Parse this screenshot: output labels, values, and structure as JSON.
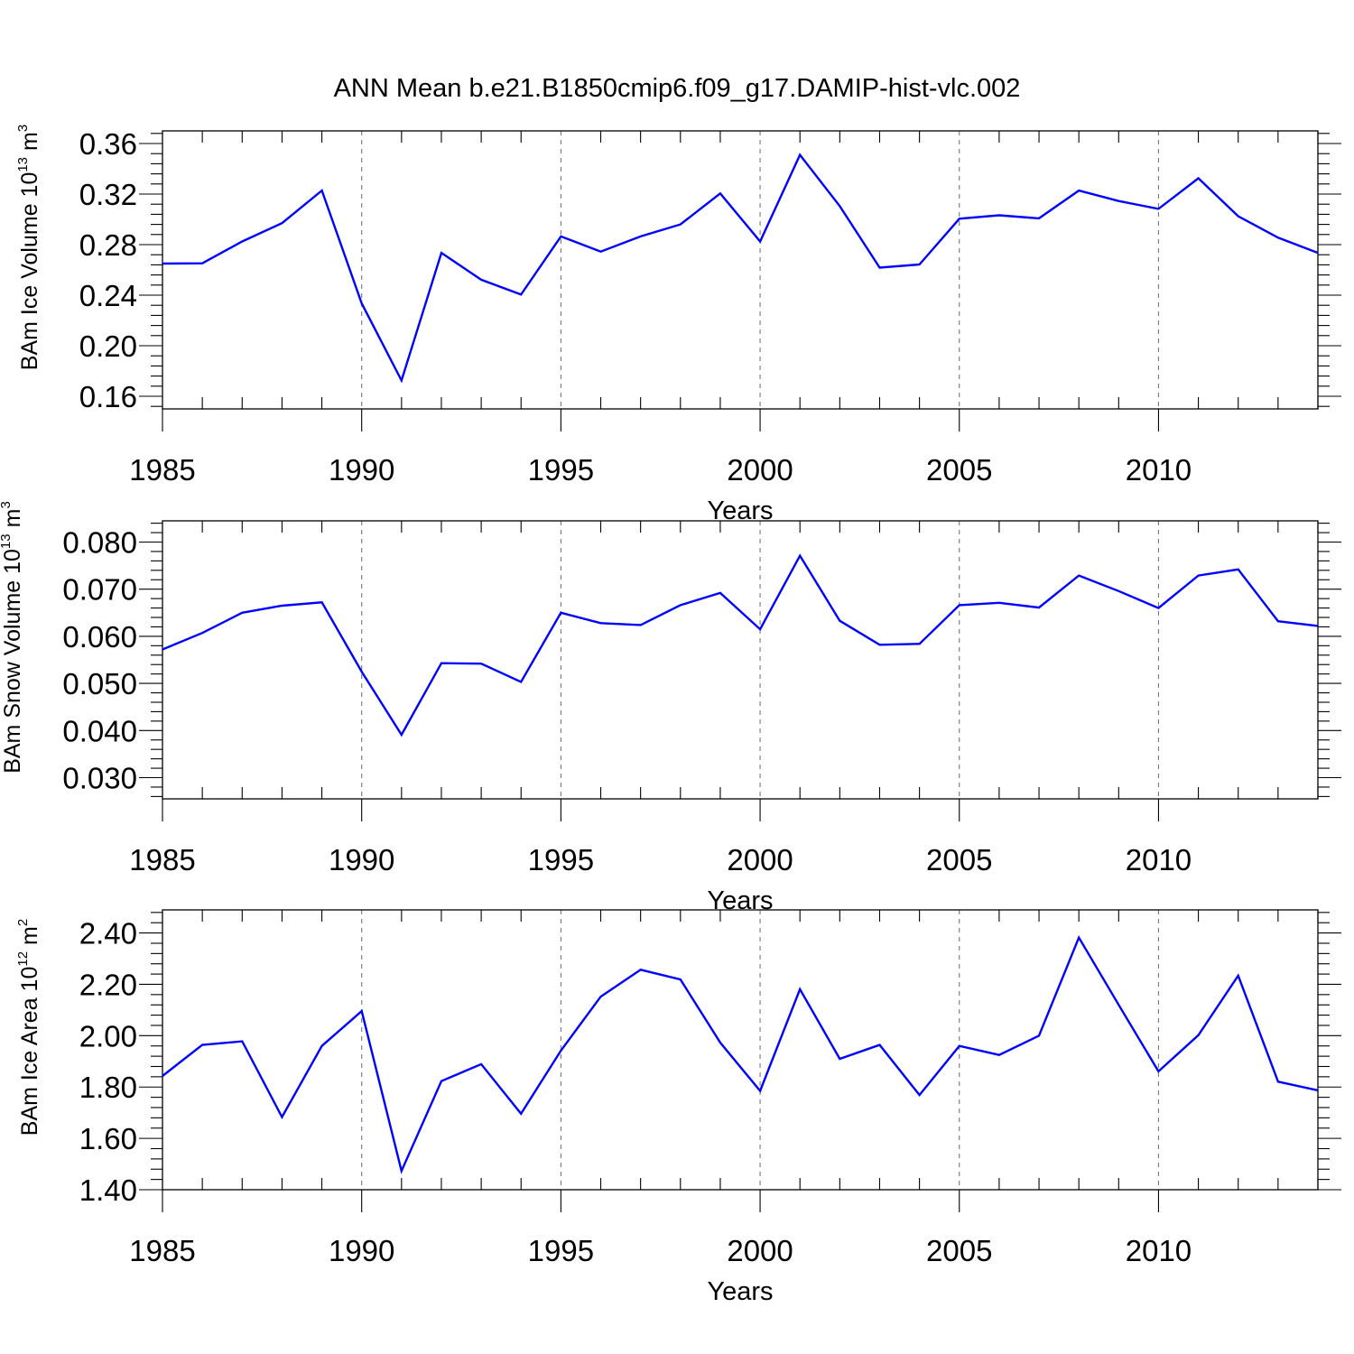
{
  "title": "ANN Mean b.e21.B1850cmip6.f09_g17.DAMIP-hist-vlc.002",
  "line_color": "#0000ff",
  "chart_data": [
    {
      "type": "line",
      "xlabel": "Years",
      "ylabel": {
        "text": "BAm Ice Volume 10",
        "sup": "13",
        "unit": "m",
        "unit_sup": "3"
      },
      "x": [
        1985,
        1986,
        1987,
        1988,
        1989,
        1990,
        1991,
        1992,
        1993,
        1994,
        1995,
        1996,
        1997,
        1998,
        1999,
        2000,
        2001,
        2002,
        2003,
        2004,
        2005,
        2006,
        2007,
        2008,
        2009,
        2010,
        2011,
        2012,
        2013,
        2014
      ],
      "values": [
        0.265,
        0.2652,
        0.2825,
        0.297,
        0.3228,
        0.2335,
        0.1725,
        0.2735,
        0.2522,
        0.2405,
        0.2865,
        0.2745,
        0.2865,
        0.296,
        0.3205,
        0.2825,
        0.351,
        0.3105,
        0.2618,
        0.2643,
        0.3005,
        0.3032,
        0.3008,
        0.3228,
        0.3145,
        0.3083,
        0.3325,
        0.3025,
        0.2855,
        0.2735
      ],
      "ylim": [
        0.15,
        0.37
      ],
      "yticks": [
        0.16,
        0.2,
        0.24,
        0.28,
        0.32,
        0.36
      ],
      "ytick_labels": [
        "0.16",
        "0.20",
        "0.24",
        "0.28",
        "0.32",
        "0.36"
      ],
      "xticks": [
        1985,
        1990,
        1995,
        2000,
        2005,
        2010
      ],
      "xtick_labels": [
        "1985",
        "1990",
        "1995",
        "2000",
        "2005",
        "2010"
      ],
      "xlim": [
        1985,
        2014
      ]
    },
    {
      "type": "line",
      "xlabel": "Years",
      "ylabel": {
        "text": "BAm Snow Volume 10",
        "sup": "13",
        "unit": "m",
        "unit_sup": "3"
      },
      "x": [
        1985,
        1986,
        1987,
        1988,
        1989,
        1990,
        1991,
        1992,
        1993,
        1994,
        1995,
        1996,
        1997,
        1998,
        1999,
        2000,
        2001,
        2002,
        2003,
        2004,
        2005,
        2006,
        2007,
        2008,
        2009,
        2010,
        2011,
        2012,
        2013,
        2014
      ],
      "values": [
        0.0572,
        0.0607,
        0.065,
        0.0665,
        0.0672,
        0.0525,
        0.0391,
        0.0543,
        0.0542,
        0.0503,
        0.065,
        0.0628,
        0.0624,
        0.0666,
        0.0692,
        0.0615,
        0.0771,
        0.0633,
        0.0582,
        0.0584,
        0.0666,
        0.0671,
        0.0661,
        0.0729,
        0.0696,
        0.066,
        0.0729,
        0.0742,
        0.0632,
        0.0622
      ],
      "ylim": [
        0.0255,
        0.0845
      ],
      "yticks": [
        0.03,
        0.04,
        0.05,
        0.06,
        0.07,
        0.08
      ],
      "ytick_labels": [
        "0.030",
        "0.040",
        "0.050",
        "0.060",
        "0.070",
        "0.080"
      ],
      "xticks": [
        1985,
        1990,
        1995,
        2000,
        2005,
        2010
      ],
      "xtick_labels": [
        "1985",
        "1990",
        "1995",
        "2000",
        "2005",
        "2010"
      ],
      "xlim": [
        1985,
        2014
      ]
    },
    {
      "type": "line",
      "xlabel": "Years",
      "ylabel": {
        "text": "BAm Ice Area 10",
        "sup": "12",
        "unit": "m",
        "unit_sup": "2"
      },
      "x": [
        1985,
        1986,
        1987,
        1988,
        1989,
        1990,
        1991,
        1992,
        1993,
        1994,
        1995,
        1996,
        1997,
        1998,
        1999,
        2000,
        2001,
        2002,
        2003,
        2004,
        2005,
        2006,
        2007,
        2008,
        2009,
        2010,
        2011,
        2012,
        2013,
        2014
      ],
      "values": [
        1.843,
        1.964,
        1.978,
        1.683,
        1.96,
        2.096,
        1.473,
        1.823,
        1.889,
        1.696,
        1.942,
        2.152,
        2.257,
        2.219,
        1.973,
        1.785,
        2.181,
        1.91,
        1.964,
        1.769,
        1.96,
        1.925,
        2.0,
        2.382,
        2.12,
        1.861,
        2.002,
        2.234,
        1.821,
        1.787
      ],
      "ylim": [
        1.4,
        2.49
      ],
      "yticks": [
        1.4,
        1.6,
        1.8,
        2.0,
        2.2,
        2.4
      ],
      "ytick_labels": [
        "1.40",
        "1.60",
        "1.80",
        "2.00",
        "2.20",
        "2.40"
      ],
      "xticks": [
        1985,
        1990,
        1995,
        2000,
        2005,
        2010
      ],
      "xtick_labels": [
        "1985",
        "1990",
        "1995",
        "2000",
        "2005",
        "2010"
      ],
      "xlim": [
        1985,
        2014
      ]
    }
  ]
}
